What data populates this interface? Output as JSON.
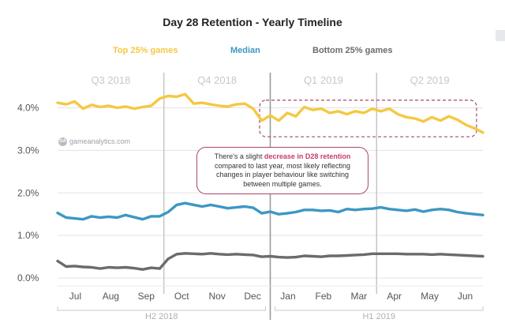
{
  "chart_data": {
    "type": "line",
    "title": "Day 28 Retention - Yearly Timeline",
    "ylim": [
      0,
      4.4
    ],
    "yticks": [
      "0.0%",
      "1.0%",
      "2.0%",
      "3.0%",
      "4.0%"
    ],
    "ytick_values": [
      0,
      1,
      2,
      3,
      4
    ],
    "months": [
      "Jul",
      "Aug",
      "Sep",
      "Oct",
      "Nov",
      "Dec",
      "Jan",
      "Feb",
      "Mar",
      "Apr",
      "May",
      "Jun"
    ],
    "quarters": [
      "Q3 2018",
      "Q4 2018",
      "Q1 2019",
      "Q2 2019"
    ],
    "halves": [
      "H2 2018",
      "H1 2019"
    ],
    "series": [
      {
        "name": "Top 25% games",
        "color": "#f5c842",
        "values": [
          4.12,
          4.08,
          4.15,
          3.98,
          4.07,
          4.02,
          4.05,
          4.0,
          4.03,
          3.98,
          4.02,
          4.05,
          4.22,
          4.28,
          4.26,
          4.32,
          4.1,
          4.12,
          4.08,
          4.05,
          4.03,
          4.08,
          4.1,
          3.98,
          3.7,
          3.82,
          3.7,
          3.88,
          3.8,
          4.02,
          3.95,
          3.98,
          3.88,
          3.92,
          3.85,
          3.92,
          3.88,
          3.98,
          3.92,
          3.98,
          3.85,
          3.78,
          3.75,
          3.68,
          3.78,
          3.7,
          3.8,
          3.72,
          3.6,
          3.52,
          3.42
        ]
      },
      {
        "name": "Median",
        "color": "#3d97c4",
        "values": [
          1.53,
          1.42,
          1.4,
          1.38,
          1.45,
          1.42,
          1.44,
          1.42,
          1.48,
          1.43,
          1.38,
          1.45,
          1.45,
          1.55,
          1.72,
          1.76,
          1.72,
          1.68,
          1.72,
          1.68,
          1.64,
          1.66,
          1.68,
          1.65,
          1.52,
          1.56,
          1.5,
          1.52,
          1.55,
          1.6,
          1.6,
          1.58,
          1.59,
          1.55,
          1.62,
          1.6,
          1.62,
          1.63,
          1.66,
          1.62,
          1.6,
          1.58,
          1.61,
          1.56,
          1.6,
          1.62,
          1.6,
          1.55,
          1.52,
          1.5,
          1.48
        ]
      },
      {
        "name": "Bottom 25% games",
        "color": "#6b6b6b",
        "values": [
          0.4,
          0.27,
          0.28,
          0.26,
          0.25,
          0.22,
          0.25,
          0.24,
          0.25,
          0.23,
          0.2,
          0.24,
          0.22,
          0.45,
          0.56,
          0.58,
          0.57,
          0.56,
          0.58,
          0.56,
          0.55,
          0.56,
          0.55,
          0.54,
          0.5,
          0.51,
          0.49,
          0.48,
          0.49,
          0.52,
          0.51,
          0.5,
          0.52,
          0.52,
          0.53,
          0.54,
          0.55,
          0.57,
          0.57,
          0.57,
          0.57,
          0.56,
          0.56,
          0.56,
          0.55,
          0.56,
          0.55,
          0.54,
          0.53,
          0.52,
          0.51
        ]
      }
    ],
    "highlight_region": {
      "x_start": 0.475,
      "x_end": 0.985,
      "y_low": 3.32,
      "y_high": 4.18
    },
    "annotation": {
      "text_before": "There's a slight ",
      "highlight": "decrease in D28 retention",
      "text_after": " compared to last year, most likely reflecting changes in player behaviour like switching between multiple games.",
      "border_color": "#a8476a",
      "highlight_color": "#c2406a"
    },
    "watermark": "gameanalytics.com",
    "grid": true
  }
}
